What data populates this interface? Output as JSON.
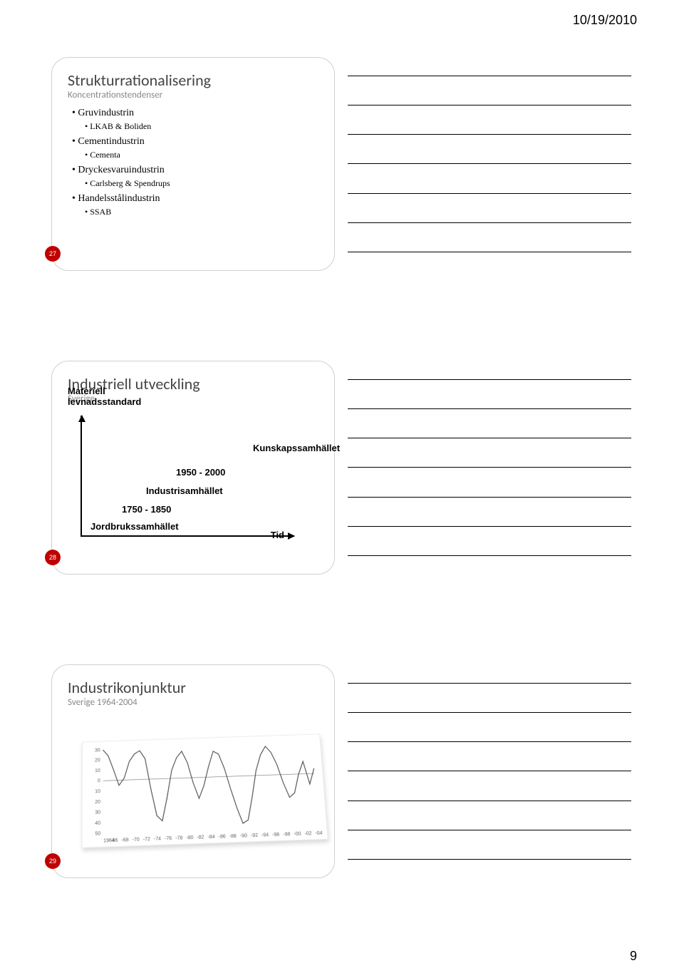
{
  "header": {
    "date": "10/19/2010",
    "page_number": "9"
  },
  "slide27": {
    "badge": "27",
    "title": "Strukturrationalisering",
    "subtitle": "Koncentrationstendenser",
    "bullets": [
      {
        "level": 1,
        "text": "Gruvindustrin"
      },
      {
        "level": 2,
        "text": "LKAB & Boliden"
      },
      {
        "level": 1,
        "text": "Cementindustrin"
      },
      {
        "level": 2,
        "text": "Cementa"
      },
      {
        "level": 1,
        "text": "Dryckesvaruindustrin"
      },
      {
        "level": 2,
        "text": "Carlsberg & Spendrups"
      },
      {
        "level": 1,
        "text": "Handelsstålindustrin"
      },
      {
        "level": 2,
        "text": "SSAB"
      }
    ]
  },
  "slide28": {
    "badge": "28",
    "title": "Industriell utveckling",
    "subtitle": "Sverige",
    "y_axis_label": "Materiell levnadsstandard",
    "x_axis_label": "Tid",
    "steps": [
      {
        "label": "Jordbrukssamhället",
        "period": ""
      },
      {
        "label": "Industrisamhället",
        "period": "1750 - 1850"
      },
      {
        "label": "",
        "period": "1950 - 2000"
      },
      {
        "label": "Kunskapssamhället",
        "period": ""
      }
    ]
  },
  "slide29": {
    "badge": "29",
    "title": "Industrikonjunktur",
    "subtitle": "Sverige 1964-2004",
    "chart": {
      "type": "line",
      "y_ticks": [
        30,
        20,
        10,
        0,
        10,
        20,
        30,
        40,
        50
      ],
      "x_start": "1964",
      "x_ticks": [
        "-66",
        "-68",
        "-70",
        "-72",
        "-74",
        "-76",
        "-78",
        "-80",
        "-82",
        "-84",
        "-86",
        "-88",
        "-90",
        "-92",
        "-94",
        "-96",
        "-98",
        "-00",
        "-02",
        "-04"
      ],
      "ylim": [
        -50,
        30
      ],
      "zero_line_color": "#888888",
      "line_color": "#555555",
      "line_width": 1.2,
      "background": "#ffffff",
      "series": [
        30,
        24,
        10,
        -5,
        2,
        18,
        25,
        28,
        20,
        -10,
        -35,
        -40,
        -18,
        8,
        20,
        26,
        15,
        -5,
        -20,
        -8,
        10,
        25,
        22,
        8,
        -12,
        -30,
        -45,
        -42,
        -20,
        5,
        20,
        28,
        22,
        10,
        -8,
        -22,
        -18,
        0,
        12,
        -10,
        5
      ]
    }
  }
}
